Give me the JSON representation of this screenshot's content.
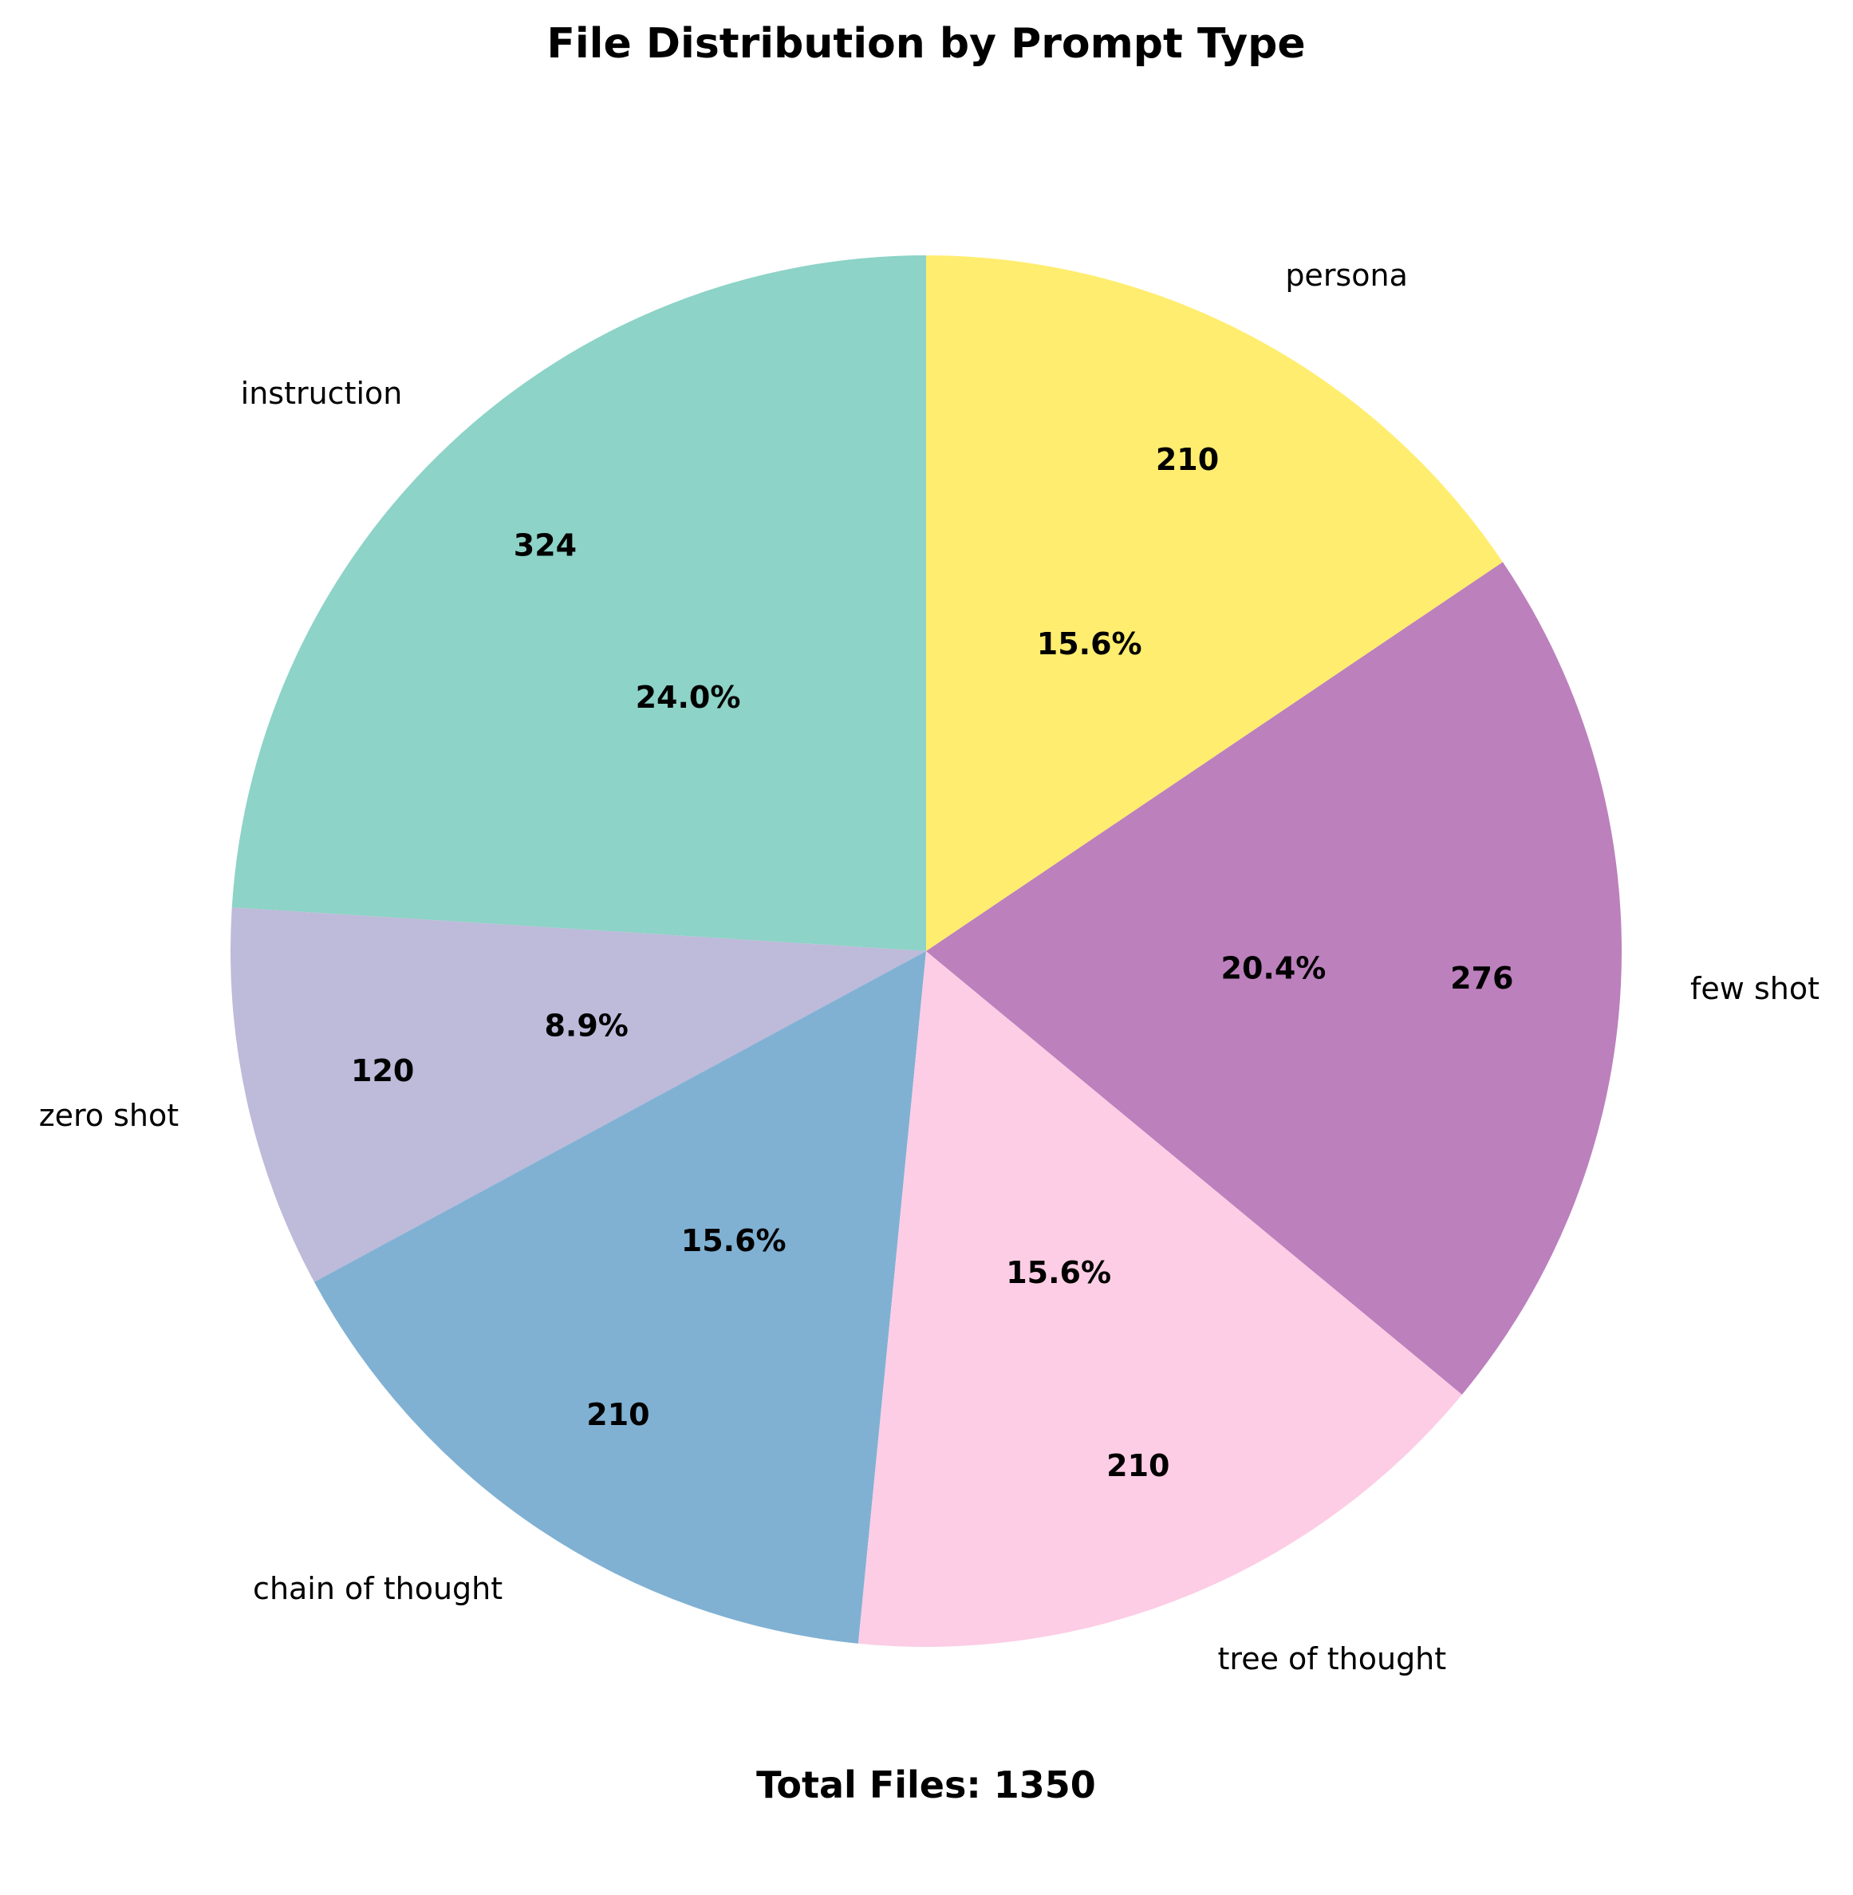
{
  "chart_data": {
    "type": "pie",
    "title": "File Distribution by Prompt Type",
    "footer": "Total Files: 1350",
    "categories": [
      "instruction",
      "zero shot",
      "chain of thought",
      "tree of thought",
      "few shot",
      "persona"
    ],
    "values": [
      324,
      120,
      210,
      210,
      276,
      210
    ],
    "percent_labels": [
      "24.0%",
      "8.9%",
      "15.6%",
      "15.6%",
      "20.4%",
      "15.6%"
    ],
    "colors": [
      "#8dd3c7",
      "#bebada",
      "#80b1d3",
      "#fccde5",
      "#bc80bd",
      "#ffed6f"
    ],
    "start_angle": 90,
    "direction": "counterclockwise"
  }
}
